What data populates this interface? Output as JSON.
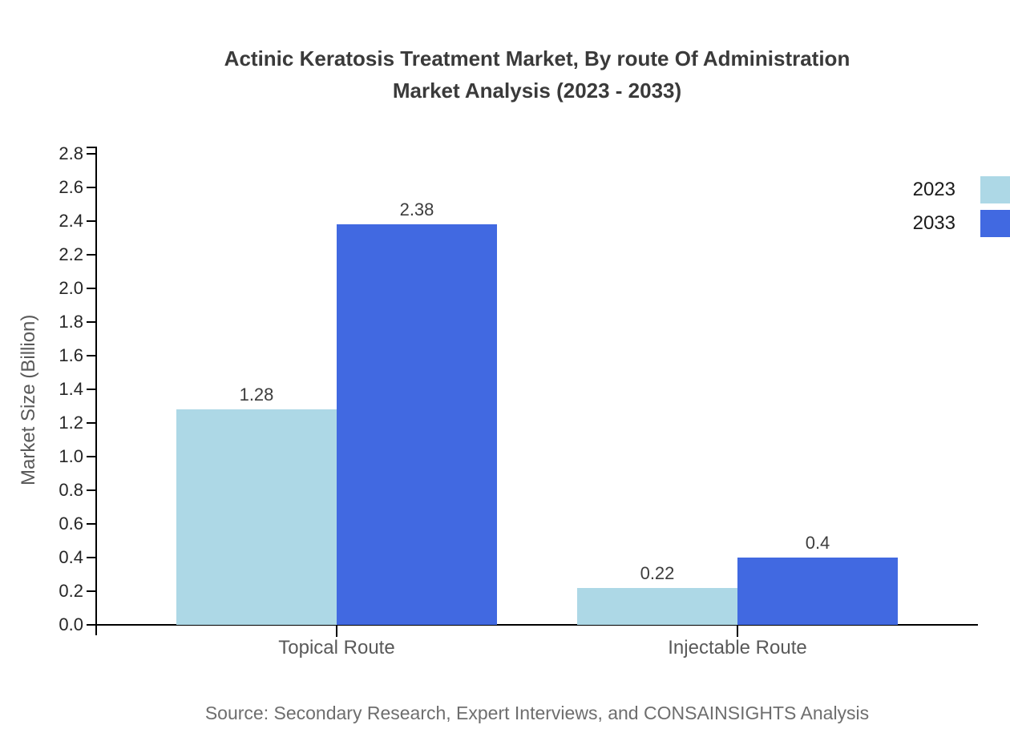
{
  "title": {
    "line1": "Actinic Keratosis Treatment Market, By route Of Administration",
    "line2": "Market Analysis (2023 - 2033)"
  },
  "chart_data": {
    "type": "bar",
    "title": "Actinic Keratosis Treatment Market, By route Of Administration Market Analysis (2023 - 2033)",
    "categories": [
      "Topical Route",
      "Injectable Route"
    ],
    "series": [
      {
        "name": "2023",
        "values": [
          1.28,
          0.22
        ],
        "labels": [
          "1.28",
          "0.22"
        ],
        "color": "#ADD8E6"
      },
      {
        "name": "2033",
        "values": [
          2.38,
          0.4
        ],
        "labels": [
          "2.38",
          "0.4"
        ],
        "color": "#4169E1"
      }
    ],
    "xlabel": "",
    "ylabel": "Market Size (Billion)",
    "ylim": [
      0,
      2.8
    ],
    "ytick_step": 0.2,
    "ytick_labels": [
      "0.0",
      "0.2",
      "0.4",
      "0.6",
      "0.8",
      "1.0",
      "1.2",
      "1.4",
      "1.6",
      "1.8",
      "2.0",
      "2.2",
      "2.4",
      "2.6",
      "2.8"
    ],
    "grid": false,
    "legend_position": "top-right"
  },
  "legend": {
    "items": [
      {
        "label": "2023",
        "color": "#ADD8E6"
      },
      {
        "label": "2033",
        "color": "#4169E1"
      }
    ]
  },
  "source": "Source: Secondary Research, Expert Interviews, and CONSAINSIGHTS Analysis",
  "colors": {
    "series_2023": "#ADD8E6",
    "series_2033": "#4169E1",
    "axis": "#000000",
    "title_text": "#3a3a3a",
    "tick_text": "#262626",
    "value_text": "#3d3d3d",
    "category_text": "#595959",
    "legend_text": "#1a1a1a",
    "source_text": "#6e6e6e"
  }
}
